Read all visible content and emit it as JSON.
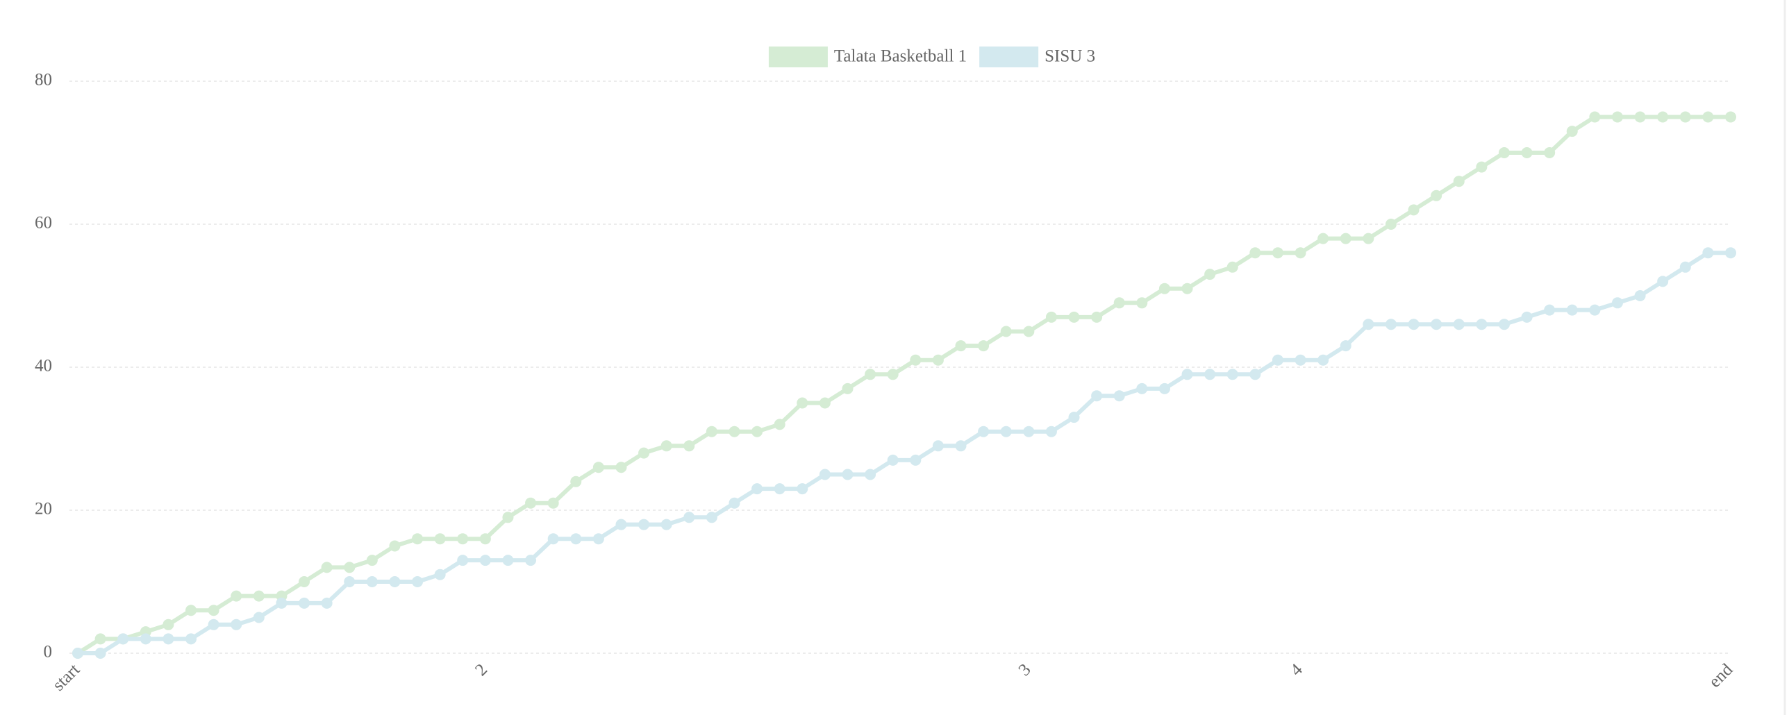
{
  "chart_data": {
    "type": "line",
    "categories": [
      "start",
      null,
      null,
      null,
      null,
      null,
      null,
      null,
      null,
      null,
      null,
      null,
      null,
      null,
      null,
      null,
      null,
      null,
      "2",
      null,
      null,
      null,
      null,
      null,
      null,
      null,
      null,
      null,
      null,
      null,
      null,
      null,
      null,
      null,
      null,
      null,
      null,
      null,
      null,
      null,
      null,
      null,
      "3",
      null,
      null,
      null,
      null,
      null,
      null,
      null,
      null,
      null,
      null,
      null,
      "4",
      null,
      null,
      null,
      null,
      null,
      null,
      null,
      null,
      null,
      null,
      null,
      null,
      null,
      null,
      null,
      null,
      null,
      null,
      "end"
    ],
    "series": [
      {
        "name": "Talata Basketball 1",
        "color": "#d5ecd4",
        "values": [
          0,
          2,
          2,
          3,
          4,
          6,
          6,
          8,
          8,
          8,
          10,
          12,
          12,
          13,
          15,
          16,
          16,
          16,
          16,
          19,
          21,
          21,
          24,
          26,
          26,
          28,
          29,
          29,
          31,
          31,
          31,
          32,
          35,
          35,
          37,
          39,
          39,
          41,
          41,
          43,
          43,
          45,
          45,
          47,
          47,
          47,
          49,
          49,
          51,
          51,
          53,
          54,
          56,
          56,
          56,
          58,
          58,
          58,
          60,
          62,
          64,
          66,
          68,
          70,
          70,
          70,
          73,
          75,
          75,
          75,
          75,
          75,
          75,
          75
        ]
      },
      {
        "name": "SISU 3",
        "color": "#d3e9ef",
        "values": [
          0,
          0,
          2,
          2,
          2,
          2,
          4,
          4,
          5,
          7,
          7,
          7,
          10,
          10,
          10,
          10,
          11,
          13,
          13,
          13,
          13,
          16,
          16,
          16,
          18,
          18,
          18,
          19,
          19,
          21,
          23,
          23,
          23,
          25,
          25,
          25,
          27,
          27,
          29,
          29,
          31,
          31,
          31,
          31,
          33,
          36,
          36,
          37,
          37,
          39,
          39,
          39,
          39,
          41,
          41,
          41,
          43,
          46,
          46,
          46,
          46,
          46,
          46,
          46,
          47,
          48,
          48,
          48,
          49,
          50,
          52,
          54,
          56,
          56
        ]
      }
    ],
    "ylim": [
      0,
      80
    ],
    "yticks": [
      0,
      20,
      40,
      60,
      80
    ],
    "grid": true,
    "legend": "top"
  }
}
